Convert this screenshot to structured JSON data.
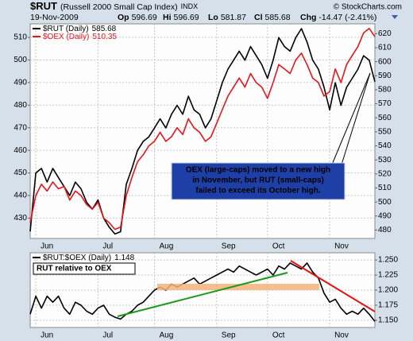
{
  "header": {
    "symbol": "$RUT",
    "name": "(Russell 2000 Small Cap Index)",
    "exchange": "INDX",
    "date": "19-Nov-2009",
    "quotes": [
      {
        "label": "Op",
        "value": "596.69"
      },
      {
        "label": "Hi",
        "value": "596.69"
      },
      {
        "label": "Lo",
        "value": "581.87"
      },
      {
        "label": "Cl",
        "value": "585.68"
      },
      {
        "label": "Chg",
        "value": "-14.47 (-2.41%)"
      }
    ],
    "credit": "© StockCharts.com"
  },
  "chart_data": [
    {
      "type": "line",
      "grid": true,
      "categories": [
        null,
        "Jun",
        null,
        null,
        null,
        null,
        null,
        null,
        null,
        null,
        null,
        null,
        "Jul",
        null,
        null,
        null,
        null,
        null,
        null,
        null,
        null,
        null,
        "Aug",
        null,
        null,
        null,
        null,
        null,
        null,
        null,
        null,
        null,
        null,
        "Sep",
        null,
        null,
        null,
        null,
        null,
        null,
        null,
        null,
        "Oct",
        null,
        null,
        null,
        null,
        null,
        null,
        null,
        null,
        null,
        null,
        "Nov",
        null,
        null,
        null,
        null,
        null,
        null,
        null,
        null
      ],
      "series": [
        {
          "name": "$RUT (Daily)",
          "color": "#000000",
          "axis": "y2",
          "values": [
            479,
            520.7,
            523.9,
            514.2,
            523.9,
            517.4,
            511.0,
            504.6,
            514.2,
            509.4,
            499.7,
            494.9,
            501.4,
            488.5,
            482.0,
            477.2,
            478.8,
            512.6,
            523.9,
            536.8,
            543.2,
            546.4,
            552.8,
            559.3,
            552.8,
            562.5,
            568.9,
            562.5,
            575.4,
            565.7,
            562.5,
            552.8,
            559.3,
            572.1,
            585.0,
            594.7,
            601.1,
            607.5,
            601.1,
            610.8,
            604.3,
            597.9,
            588.2,
            601.1,
            617.2,
            610.8,
            607.5,
            617.2,
            623.6,
            614.0,
            601.1,
            594.7,
            581.8,
            565.7,
            585.0,
            568.9,
            581.8,
            588.2,
            594.7,
            604.3,
            601.1,
            585.68
          ]
        },
        {
          "name": "$OEX (Daily)",
          "color": "#e8141b",
          "values": [
            428,
            440,
            445,
            442,
            446,
            443,
            444,
            438,
            442,
            440,
            436,
            434,
            437,
            430,
            428,
            425,
            426,
            440,
            448,
            455,
            458,
            462,
            464,
            468,
            464,
            466,
            470,
            467,
            474,
            470,
            468,
            464,
            466,
            472,
            478,
            484,
            488,
            492,
            488,
            494,
            490,
            488,
            483,
            490,
            498,
            496,
            494,
            500,
            503,
            498,
            492,
            490,
            484,
            486,
            496,
            490,
            498,
            502,
            506,
            512,
            514,
            510.35
          ]
        }
      ],
      "ylim": [
        421,
        516
      ],
      "yticks": [
        430,
        440,
        450,
        460,
        470,
        480,
        490,
        500,
        510
      ],
      "y2lim": [
        474,
        627
      ],
      "y2ticks": [
        480,
        490,
        500,
        510,
        520,
        530,
        540,
        550,
        560,
        570,
        580,
        590,
        600,
        610,
        620
      ],
      "annotation": [
        "OEX (large-caps) moved to a new high",
        "in November, but RUT (small-caps)",
        "failed to exceed its October high."
      ]
    },
    {
      "type": "line",
      "grid": true,
      "categories": [
        null,
        "Jun",
        null,
        null,
        null,
        null,
        null,
        null,
        null,
        null,
        null,
        null,
        "Jul",
        null,
        null,
        null,
        null,
        null,
        null,
        null,
        null,
        null,
        "Aug",
        null,
        null,
        null,
        null,
        null,
        null,
        null,
        null,
        null,
        null,
        "Sep",
        null,
        null,
        null,
        null,
        null,
        null,
        null,
        null,
        "Oct",
        null,
        null,
        null,
        null,
        null,
        null,
        null,
        null,
        null,
        null,
        "Nov",
        null,
        null,
        null,
        null,
        null,
        null,
        null,
        null
      ],
      "series": [
        {
          "name": "$RUT:$OEX (Daily)",
          "color": "#000000",
          "axis": "y2",
          "values": [
            1.16,
            1.19,
            1.17,
            1.19,
            1.18,
            1.19,
            1.17,
            1.16,
            1.18,
            1.175,
            1.165,
            1.16,
            1.17,
            1.175,
            1.16,
            1.155,
            1.152,
            1.16,
            1.165,
            1.175,
            1.18,
            1.19,
            1.2,
            1.205,
            1.2,
            1.21,
            1.205,
            1.21,
            1.215,
            1.22,
            1.21,
            1.215,
            1.22,
            1.225,
            1.23,
            1.235,
            1.23,
            1.24,
            1.235,
            1.23,
            1.225,
            1.23,
            1.235,
            1.225,
            1.24,
            1.235,
            1.245,
            1.24,
            1.235,
            1.245,
            1.23,
            1.22,
            1.195,
            1.18,
            1.185,
            1.17,
            1.16,
            1.165,
            1.16,
            1.17,
            1.16,
            1.148
          ]
        }
      ],
      "y2lim": [
        1.138,
        1.262
      ],
      "y2ticks": [
        {
          "value": 1.15,
          "label": "1.150"
        },
        {
          "value": 1.175,
          "label": "1.175"
        },
        {
          "value": 1.2,
          "label": "1.200"
        },
        {
          "value": 1.225,
          "label": "1.225"
        },
        {
          "value": 1.25,
          "label": "1.250"
        }
      ],
      "annotation": [
        "RUT relative to OEX"
      ]
    }
  ]
}
